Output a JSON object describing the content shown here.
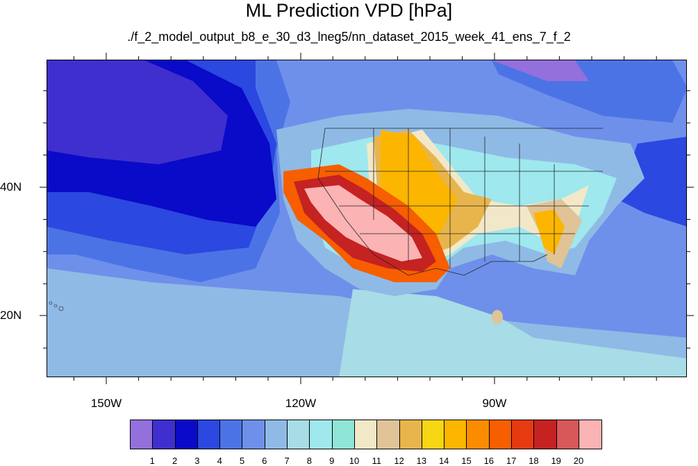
{
  "title": "ML Prediction VPD [hPa]",
  "subtitle": "./f_2_model_output_b8_e_30_d3_lneg5/nn_dataset_2015_week_41_ens_7_f_2",
  "map": {
    "lon_labels": [
      "150W",
      "120W",
      "90W"
    ],
    "lat_labels": [
      "40N",
      "20N"
    ],
    "projection": "cylindrical-equidistant",
    "features": [
      "pacific-ocean",
      "north-america-land",
      "us-state-borders",
      "hawaii"
    ]
  },
  "colorbar": {
    "labels": [
      "1",
      "2",
      "3",
      "4",
      "5",
      "6",
      "7",
      "8",
      "9",
      "10",
      "11",
      "12",
      "13",
      "14",
      "15",
      "16",
      "17",
      "18",
      "19",
      "20"
    ],
    "colors": [
      "#9370db",
      "#3f2fce",
      "#0a0ac9",
      "#2b48e0",
      "#4c73e6",
      "#6e90ea",
      "#8fbae6",
      "#a8dce6",
      "#9ee8ee",
      "#8fe6d6",
      "#f2e8c8",
      "#e0c397",
      "#e8b54c",
      "#f7d614",
      "#fcb600",
      "#fb8c00",
      "#f75e00",
      "#e63a10",
      "#c52222",
      "#d65858",
      "#fbb3b3"
    ]
  }
}
